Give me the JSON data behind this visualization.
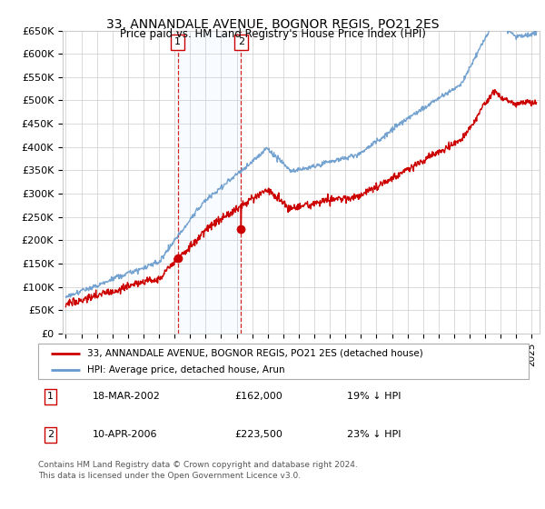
{
  "title": "33, ANNANDALE AVENUE, BOGNOR REGIS, PO21 2ES",
  "subtitle": "Price paid vs. HM Land Registry's House Price Index (HPI)",
  "ylim": [
    0,
    650000
  ],
  "yticks": [
    0,
    50000,
    100000,
    150000,
    200000,
    250000,
    300000,
    350000,
    400000,
    450000,
    500000,
    550000,
    600000,
    650000
  ],
  "ytick_labels": [
    "£0",
    "£50K",
    "£100K",
    "£150K",
    "£200K",
    "£250K",
    "£300K",
    "£350K",
    "£400K",
    "£450K",
    "£500K",
    "£550K",
    "£600K",
    "£650K"
  ],
  "xlim_start": 1994.8,
  "xlim_end": 2025.5,
  "xtick_years": [
    1995,
    1996,
    1997,
    1998,
    1999,
    2000,
    2001,
    2002,
    2003,
    2004,
    2005,
    2006,
    2007,
    2008,
    2009,
    2010,
    2011,
    2012,
    2013,
    2014,
    2015,
    2016,
    2017,
    2018,
    2019,
    2020,
    2021,
    2022,
    2023,
    2024,
    2025
  ],
  "purchase_events": [
    {
      "num": 1,
      "year": 2002.21,
      "price": 162000,
      "date": "18-MAR-2002",
      "label_price": "£162,000",
      "pct": "19%",
      "dir": "↓"
    },
    {
      "num": 2,
      "year": 2006.28,
      "price": 223500,
      "date": "10-APR-2006",
      "label_price": "£223,500",
      "pct": "23%",
      "dir": "↓"
    }
  ],
  "legend_line1": "33, ANNANDALE AVENUE, BOGNOR REGIS, PO21 2ES (detached house)",
  "legend_line2": "HPI: Average price, detached house, Arun",
  "footnote": "Contains HM Land Registry data © Crown copyright and database right 2024.\nThis data is licensed under the Open Government Licence v3.0.",
  "red_color": "#cc0000",
  "blue_color": "#6699cc",
  "shade_color": "#ddeeff",
  "grid_color": "#cccccc",
  "background_color": "#ffffff"
}
